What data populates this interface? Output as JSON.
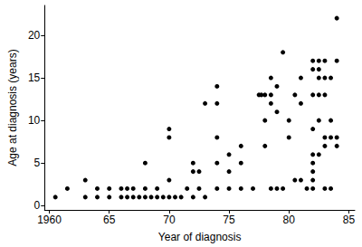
{
  "chart_data": {
    "type": "scatter",
    "x_label": "Year of diagnosis",
    "y_label": "Age at diagnosis (years)",
    "x": [
      1960.5,
      1961.5,
      1963,
      1963,
      1964,
      1964,
      1965,
      1965,
      1966,
      1966,
      1966.5,
      1966.5,
      1967,
      1967,
      1967.5,
      1968,
      1968,
      1968,
      1968.5,
      1969,
      1969,
      1969.5,
      1970,
      1970,
      1970,
      1970,
      1970.5,
      1971,
      1971.5,
      1972,
      1972,
      1972.5,
      1972.5,
      1972,
      1973,
      1973,
      1974,
      1974,
      1974,
      1974,
      1974,
      1975,
      1975,
      1975,
      1976,
      1976,
      1976,
      1977,
      1977.5,
      1977.7,
      1978,
      1978,
      1978,
      1978.5,
      1978.5,
      1978.5,
      1978.5,
      1979,
      1979,
      1979,
      1979.5,
      1979.5,
      1980,
      1980,
      1980.5,
      1980.5,
      1981,
      1981,
      1981,
      1981.5,
      1982,
      1982,
      1982,
      1982,
      1982,
      1982,
      1982,
      1982,
      1982,
      1982.5,
      1982.5,
      1982.5,
      1982.5,
      1982.5,
      1982.5,
      1983,
      1983,
      1983,
      1983,
      1983,
      1983,
      1983.5,
      1983.5,
      1983.5,
      1983.5,
      1984,
      1984,
      1984,
      1984
    ],
    "values": [
      1,
      2,
      3,
      1,
      2,
      1,
      2,
      1,
      2,
      1,
      2,
      1,
      2,
      1,
      1,
      5,
      2,
      1,
      1,
      1,
      2,
      1,
      9,
      8,
      3,
      1,
      1,
      1,
      2,
      5,
      4,
      4,
      2,
      1,
      12,
      1,
      14,
      12,
      8,
      5,
      2,
      6,
      4,
      2,
      7,
      5,
      2,
      2,
      13,
      13,
      13,
      10,
      7,
      15,
      13,
      12,
      2,
      14,
      11,
      2,
      18,
      2,
      10,
      8,
      13,
      3,
      15,
      12,
      3,
      2,
      17,
      16,
      13,
      9,
      6,
      5,
      4,
      3,
      2,
      17,
      16,
      15,
      13,
      10,
      6,
      17,
      15,
      13,
      8,
      7,
      2,
      15,
      10,
      8,
      2,
      22,
      17,
      8,
      7
    ],
    "color": "#000000",
    "marker": "circle",
    "xlim": [
      1959.6,
      1985.5
    ],
    "xticks": [
      1960,
      {
        "value": 1965,
        "label": "65"
      },
      {
        "value": 1970,
        "label": "70"
      },
      {
        "value": 1975,
        "label": "75"
      },
      {
        "value": 1980,
        "label": "80"
      },
      {
        "value": 1985,
        "label": "85"
      }
    ],
    "ylim": [
      -0.5,
      23.5
    ],
    "yticks": [
      0,
      5,
      10,
      15,
      20
    ],
    "grid": false
  }
}
